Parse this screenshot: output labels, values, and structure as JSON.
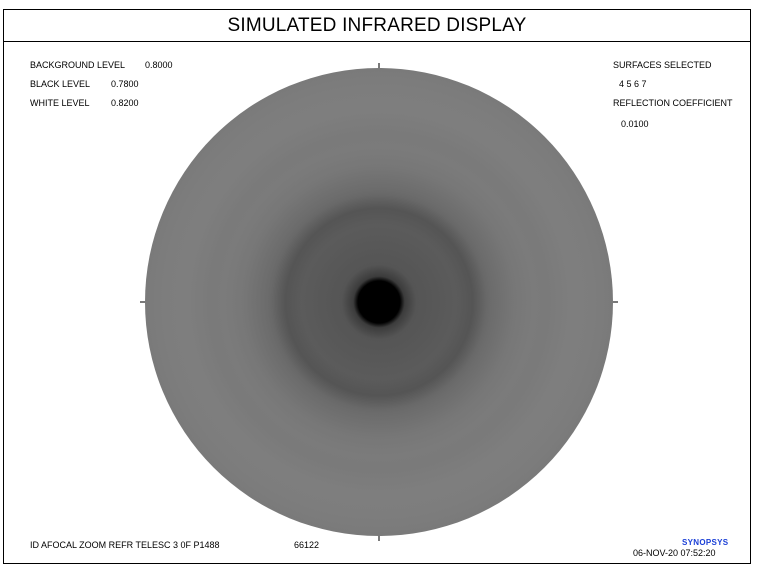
{
  "window": {
    "title": "SIMULATED INFRARED DISPLAY"
  },
  "levels": {
    "background_label": "BACKGROUND LEVEL",
    "background_value": "0.8000",
    "black_label": "BLACK LEVEL",
    "black_value": "0.7800",
    "white_label": "WHITE LEVEL",
    "white_value": "0.8200"
  },
  "surfaces": {
    "label": "SURFACES SELECTED",
    "values": "4  5  6  7"
  },
  "reflection": {
    "label": "REFLECTION COEFFICIENT",
    "value": "0.0100"
  },
  "footer": {
    "lens_id": "ID AFOCAL ZOOM REFR TELESC 3 0F P1488",
    "code": "66122",
    "brand": "SYNOPSYS",
    "datetime": "06-NOV-20  07:52:20"
  },
  "colors": {
    "brand": "#1a3fd6",
    "disc_outer": "#7a7a7a",
    "disc_inner": "#555555",
    "center_spot": "#000000"
  }
}
